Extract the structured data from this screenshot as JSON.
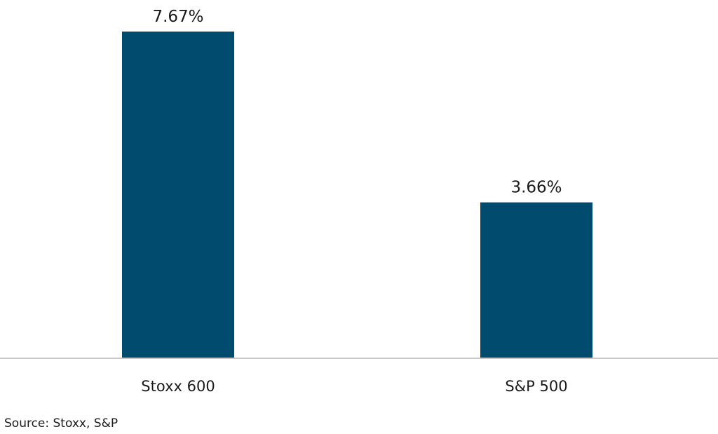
{
  "chart_data": {
    "type": "bar",
    "categories": [
      "Stoxx 600",
      "S&P 500"
    ],
    "values": [
      7.67,
      3.66
    ],
    "data_labels": [
      "7.67%",
      "3.66%"
    ],
    "title": "",
    "xlabel": "",
    "ylabel": "",
    "ylim": [
      0,
      8.2
    ],
    "grid": false,
    "legend": "none",
    "colors": {
      "bar": "#004b6e",
      "axis": "#c8c8c8"
    }
  },
  "source": "Source: Stoxx, S&P"
}
